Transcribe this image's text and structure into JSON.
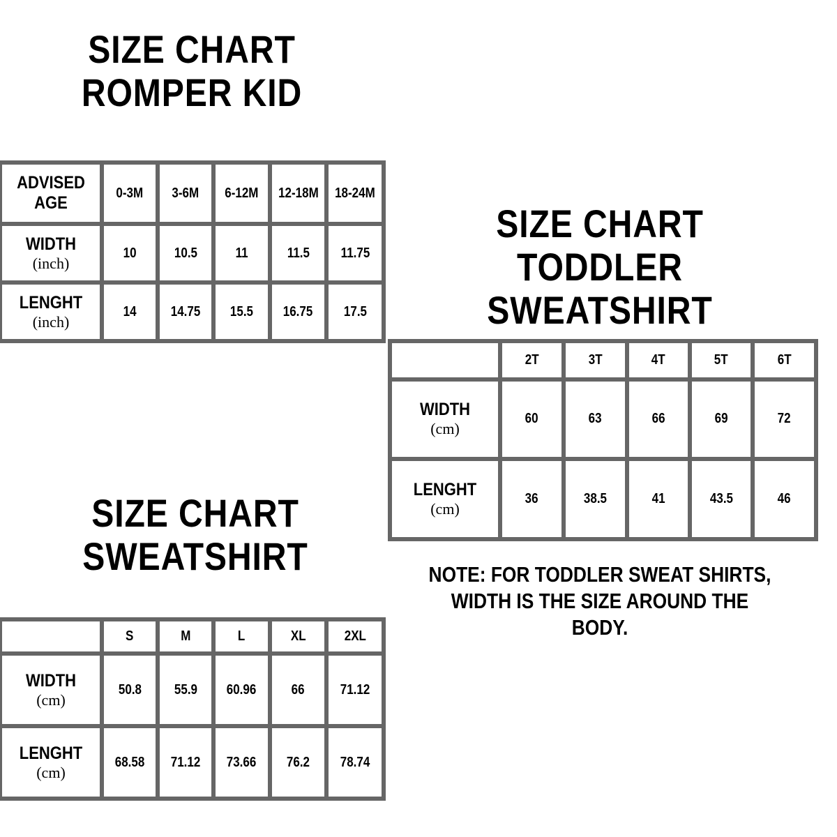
{
  "romper": {
    "title_line1": "SIZE CHART",
    "title_line2": "ROMPER KID",
    "header_label": "ADVISED AGE",
    "sizes": [
      "0-3M",
      "3-6M",
      "6-12M",
      "12-18M",
      "18-24M"
    ],
    "rows": [
      {
        "label": "WIDTH",
        "unit": "(inch)",
        "values": [
          "10",
          "10.5",
          "11",
          "11.5",
          "11.75"
        ]
      },
      {
        "label": "LENGHT",
        "unit": "(inch)",
        "values": [
          "14",
          "14.75",
          "15.5",
          "16.75",
          "17.5"
        ]
      }
    ]
  },
  "toddler": {
    "title_line1": "SIZE CHART",
    "title_line2": "TODDLER SWEATSHIRT",
    "header_label": "",
    "sizes": [
      "2T",
      "3T",
      "4T",
      "5T",
      "6T"
    ],
    "rows": [
      {
        "label": "WIDTH",
        "unit": "(cm)",
        "values": [
          "60",
          "63",
          "66",
          "69",
          "72"
        ]
      },
      {
        "label": "LENGHT",
        "unit": "(cm)",
        "values": [
          "36",
          "38.5",
          "41",
          "43.5",
          "46"
        ]
      }
    ],
    "note_line1": "NOTE: FOR TODDLER SWEAT SHIRTS,",
    "note_line2": "WIDTH IS THE SIZE AROUND THE BODY."
  },
  "sweatshirt": {
    "title_line1": "SIZE CHART",
    "title_line2": "SWEATSHIRT",
    "header_label": "",
    "sizes": [
      "S",
      "M",
      "L",
      "XL",
      "2XL"
    ],
    "rows": [
      {
        "label": "WIDTH",
        "unit": "(cm)",
        "values": [
          "50.8",
          "55.9",
          "60.96",
          "66",
          "71.12"
        ]
      },
      {
        "label": "LENGHT",
        "unit": "(cm)",
        "values": [
          "68.58",
          "71.12",
          "73.66",
          "76.2",
          "78.74"
        ]
      }
    ]
  },
  "colors": {
    "grid": "#666666",
    "text": "#000000",
    "background": "#ffffff"
  }
}
